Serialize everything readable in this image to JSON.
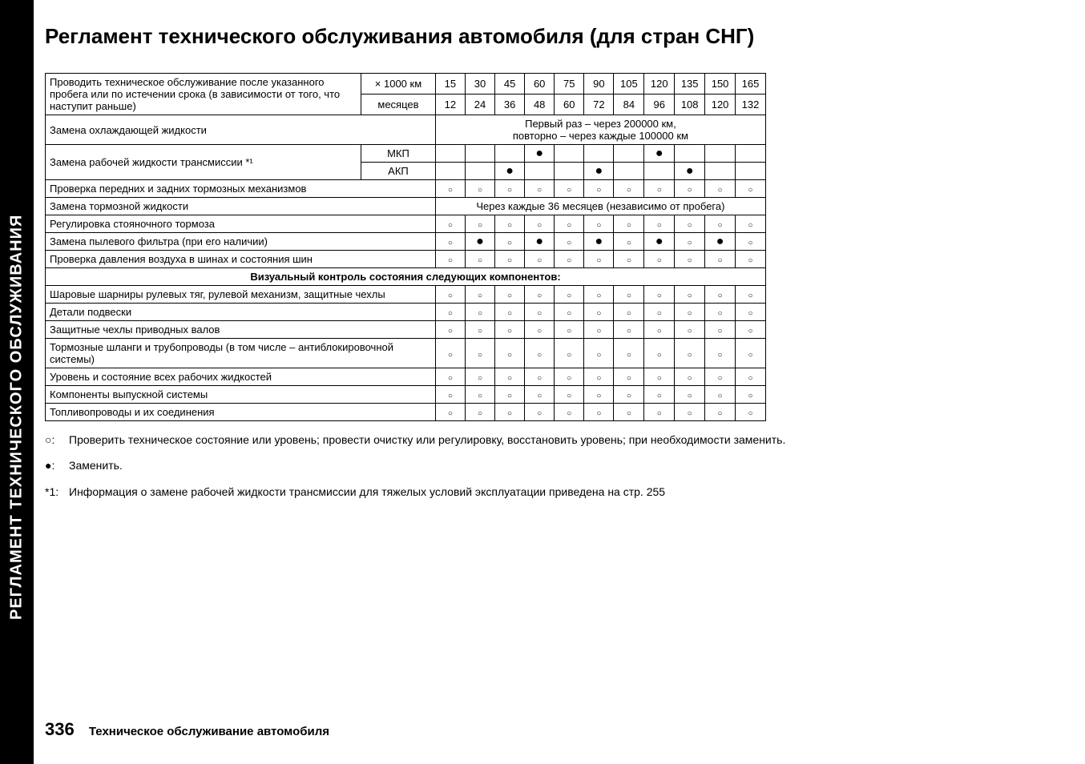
{
  "sidebar_text": "РЕГЛАМЕНТ ТЕХНИЧЕСКОГО ОБСЛУЖИВАНИЯ",
  "title": "Регламент технического обслуживания автомобиля (для стран СНГ)",
  "table": {
    "header_desc": "Проводить техническое обслуживание после указанного пробега или по истечении срока (в зависимости от того, что наступит раньше)",
    "unit1_label": "× 1000 км",
    "unit2_label": "месяцев",
    "km_values": [
      "15",
      "30",
      "45",
      "60",
      "75",
      "90",
      "105",
      "120",
      "135",
      "150",
      "165"
    ],
    "month_values": [
      "12",
      "24",
      "36",
      "48",
      "60",
      "72",
      "84",
      "96",
      "108",
      "120",
      "132"
    ],
    "rows": [
      {
        "desc": "Замена охлаждающей жидкости",
        "merged": "Первый раз – через 200000 км,\nповторно – через каждые 100000 км"
      },
      {
        "desc": "Замена рабочей жидкости трансмиссии *¹",
        "variant1_label": "МКП",
        "variant1_marks": [
          "",
          "",
          "",
          "●",
          "",
          "",
          "",
          "●",
          "",
          "",
          ""
        ],
        "variant2_label": "АКП",
        "variant2_marks": [
          "",
          "",
          "●",
          "",
          "",
          "●",
          "",
          "",
          "●",
          "",
          ""
        ]
      },
      {
        "desc": "Проверка передних и задних тормозных механизмов",
        "marks": [
          "○",
          "○",
          "○",
          "○",
          "○",
          "○",
          "○",
          "○",
          "○",
          "○",
          "○"
        ]
      },
      {
        "desc": "Замена тормозной жидкости",
        "merged": "Через каждые 36 месяцев (независимо от пробега)"
      },
      {
        "desc": "Регулировка стояночного тормоза",
        "marks": [
          "○",
          "○",
          "○",
          "○",
          "○",
          "○",
          "○",
          "○",
          "○",
          "○",
          "○"
        ]
      },
      {
        "desc": "Замена пылевого фильтра (при его наличии)",
        "marks": [
          "○",
          "●",
          "○",
          "●",
          "○",
          "●",
          "○",
          "●",
          "○",
          "●",
          "○"
        ]
      },
      {
        "desc": "Проверка давления воздуха в шинах и состояния шин",
        "marks": [
          "○",
          "○",
          "○",
          "○",
          "○",
          "○",
          "○",
          "○",
          "○",
          "○",
          "○"
        ]
      }
    ],
    "section_header": "Визуальный контроль состояния следующих компонентов:",
    "rows2": [
      {
        "desc": "Шаровые шарниры рулевых тяг, рулевой механизм, защитные чехлы",
        "marks": [
          "○",
          "○",
          "○",
          "○",
          "○",
          "○",
          "○",
          "○",
          "○",
          "○",
          "○"
        ]
      },
      {
        "desc": "Детали подвески",
        "marks": [
          "○",
          "○",
          "○",
          "○",
          "○",
          "○",
          "○",
          "○",
          "○",
          "○",
          "○"
        ]
      },
      {
        "desc": "Защитные чехлы приводных валов",
        "marks": [
          "○",
          "○",
          "○",
          "○",
          "○",
          "○",
          "○",
          "○",
          "○",
          "○",
          "○"
        ]
      },
      {
        "desc": "Тормозные шланги и трубопроводы (в том числе – антиблокировочной системы)",
        "marks": [
          "○",
          "○",
          "○",
          "○",
          "○",
          "○",
          "○",
          "○",
          "○",
          "○",
          "○"
        ]
      },
      {
        "desc": "Уровень и состояние всех рабочих жидкостей",
        "marks": [
          "○",
          "○",
          "○",
          "○",
          "○",
          "○",
          "○",
          "○",
          "○",
          "○",
          "○"
        ]
      },
      {
        "desc": "Компоненты выпускной системы",
        "marks": [
          "○",
          "○",
          "○",
          "○",
          "○",
          "○",
          "○",
          "○",
          "○",
          "○",
          "○"
        ]
      },
      {
        "desc": "Топливопроводы и их соединения",
        "marks": [
          "○",
          "○",
          "○",
          "○",
          "○",
          "○",
          "○",
          "○",
          "○",
          "○",
          "○"
        ]
      }
    ]
  },
  "notes": {
    "note1_symbol": "○:",
    "note1_text": "Проверить техническое состояние или уровень; провести очистку или регулировку, восстановить уровень; при необходимости заменить.",
    "note2_symbol": "●:",
    "note2_text": "Заменить.",
    "note3_symbol": "*1:",
    "note3_text": "Информация о замене рабочей жидкости трансмиссии для тяжелых условий эксплуатации приведена на стр. 255"
  },
  "footer": {
    "page_num": "336",
    "text": "Техническое обслуживание автомобиля"
  }
}
